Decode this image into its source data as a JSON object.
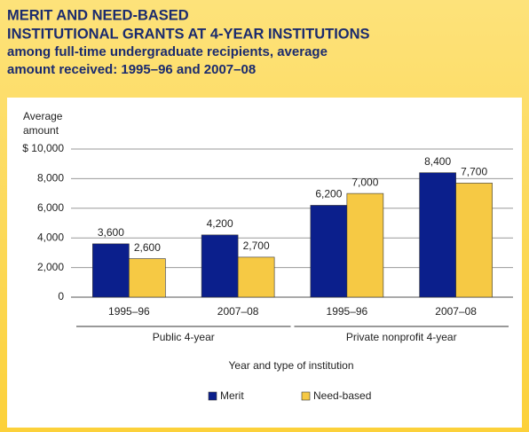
{
  "chart_data": {
    "type": "grouped-bar",
    "title": [
      "MERIT AND NEED-BASED",
      "INSTITUTIONAL GRANTS AT 4-YEAR INSTITUTIONS"
    ],
    "subtitle": [
      "among full-time undergraduate recipients, average",
      "amount received: 1995–96 and 2007–08"
    ],
    "ylabel": [
      "Average",
      "amount"
    ],
    "xlabel": "Year and type of institution",
    "categories": [
      "1995–96",
      "2007–08",
      "1995–96",
      "2007–08"
    ],
    "group_labels": [
      "Public 4-year",
      "Private nonprofit 4-year"
    ],
    "series": [
      {
        "name": "Merit",
        "color": "#0b1f8c",
        "values": [
          3600,
          4200,
          6200,
          8400
        ],
        "value_labels": [
          "3,600",
          "4,200",
          "6,200",
          "8,400"
        ]
      },
      {
        "name": "Need-based",
        "color": "#f6c944",
        "values": [
          2600,
          2700,
          7000,
          7700
        ],
        "value_labels": [
          "2,600",
          "2,700",
          "7,000",
          "7,700"
        ]
      }
    ],
    "ylim": [
      0,
      10000
    ],
    "yticks": [
      0,
      {
        "value": 2000,
        "label": "2,000"
      },
      {
        "value": 4000,
        "label": "4,000"
      },
      {
        "value": 6000,
        "label": "6,000"
      },
      {
        "value": 8000,
        "label": "8,000"
      },
      {
        "value": 10000,
        "label": "$ 10,000"
      }
    ],
    "grid": true
  }
}
